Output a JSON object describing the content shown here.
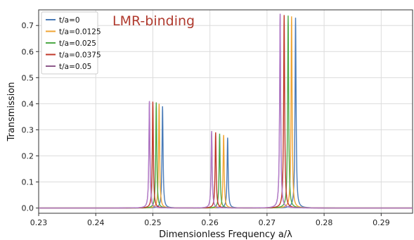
{
  "chart_data": {
    "type": "line",
    "title": "LMR-binding",
    "xlabel": "Dimensionless Frequency a/λ",
    "ylabel": "Transmission",
    "xlim": [
      0.23,
      0.2955
    ],
    "ylim": [
      -0.02,
      0.76
    ],
    "x_ticks": [
      "0.23",
      "0.24",
      "0.25",
      "0.26",
      "0.27",
      "0.28",
      "0.29"
    ],
    "y_ticks": [
      "0.0",
      "0.1",
      "0.2",
      "0.3",
      "0.4",
      "0.5",
      "0.6",
      "0.7"
    ],
    "grid": true,
    "legend_position": "top-left",
    "series": [
      {
        "name": "t/a=0",
        "color": "#4a7bb7",
        "peaks": [
          {
            "x": 0.2517,
            "y": 0.39
          },
          {
            "x": 0.2631,
            "y": 0.27
          },
          {
            "x": 0.275,
            "y": 0.73
          }
        ]
      },
      {
        "name": "t/a=0.0125",
        "color": "#f0a534",
        "peaks": [
          {
            "x": 0.2511,
            "y": 0.4
          },
          {
            "x": 0.2624,
            "y": 0.28
          },
          {
            "x": 0.2743,
            "y": 0.735
          }
        ]
      },
      {
        "name": "t/a=0.025",
        "color": "#4eaa47",
        "peaks": [
          {
            "x": 0.2506,
            "y": 0.405
          },
          {
            "x": 0.2617,
            "y": 0.285
          },
          {
            "x": 0.2737,
            "y": 0.738
          }
        ]
      },
      {
        "name": "t/a=0.0375",
        "color": "#c0392b",
        "peaks": [
          {
            "x": 0.25,
            "y": 0.408
          },
          {
            "x": 0.261,
            "y": 0.29
          },
          {
            "x": 0.273,
            "y": 0.74
          }
        ]
      },
      {
        "name": "t/a=0.05",
        "color": "#8e5a8a",
        "peaks": [
          {
            "x": 0.2494,
            "y": 0.41
          },
          {
            "x": 0.2603,
            "y": 0.295
          },
          {
            "x": 0.2723,
            "y": 0.745
          }
        ]
      }
    ],
    "overlay_series": {
      "color": "#b97fd6"
    }
  }
}
